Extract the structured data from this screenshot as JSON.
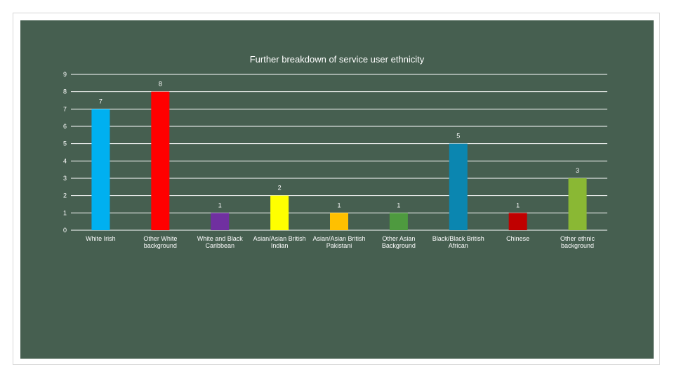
{
  "chart_data": {
    "type": "bar",
    "title": "Further breakdown of service user ethnicity",
    "categories": [
      [
        "White Irish"
      ],
      [
        "Other White",
        "background"
      ],
      [
        "White and Black",
        "Caribbean"
      ],
      [
        "Asian/Asian British",
        "Indian"
      ],
      [
        "Asian/Asian British",
        "Pakistani"
      ],
      [
        "Other Asian",
        "Background"
      ],
      [
        "Black/Black British",
        "African"
      ],
      [
        "Chinese"
      ],
      [
        "Other ethnic",
        "background"
      ]
    ],
    "values": [
      7,
      8,
      1,
      2,
      1,
      1,
      5,
      1,
      3
    ],
    "bar_colors": [
      "#00b0f0",
      "#ff0000",
      "#7030a0",
      "#ffff00",
      "#ffc000",
      "#4e9a3f",
      "#0b86b0",
      "#c00000",
      "#8ab834"
    ],
    "ylim": [
      0,
      9
    ],
    "yticks": [
      0,
      1,
      2,
      3,
      4,
      5,
      6,
      7,
      8,
      9
    ],
    "grid": true,
    "data_labels": true,
    "legend": "none",
    "background_color": "#465f50",
    "text_color": "#ffffff"
  }
}
